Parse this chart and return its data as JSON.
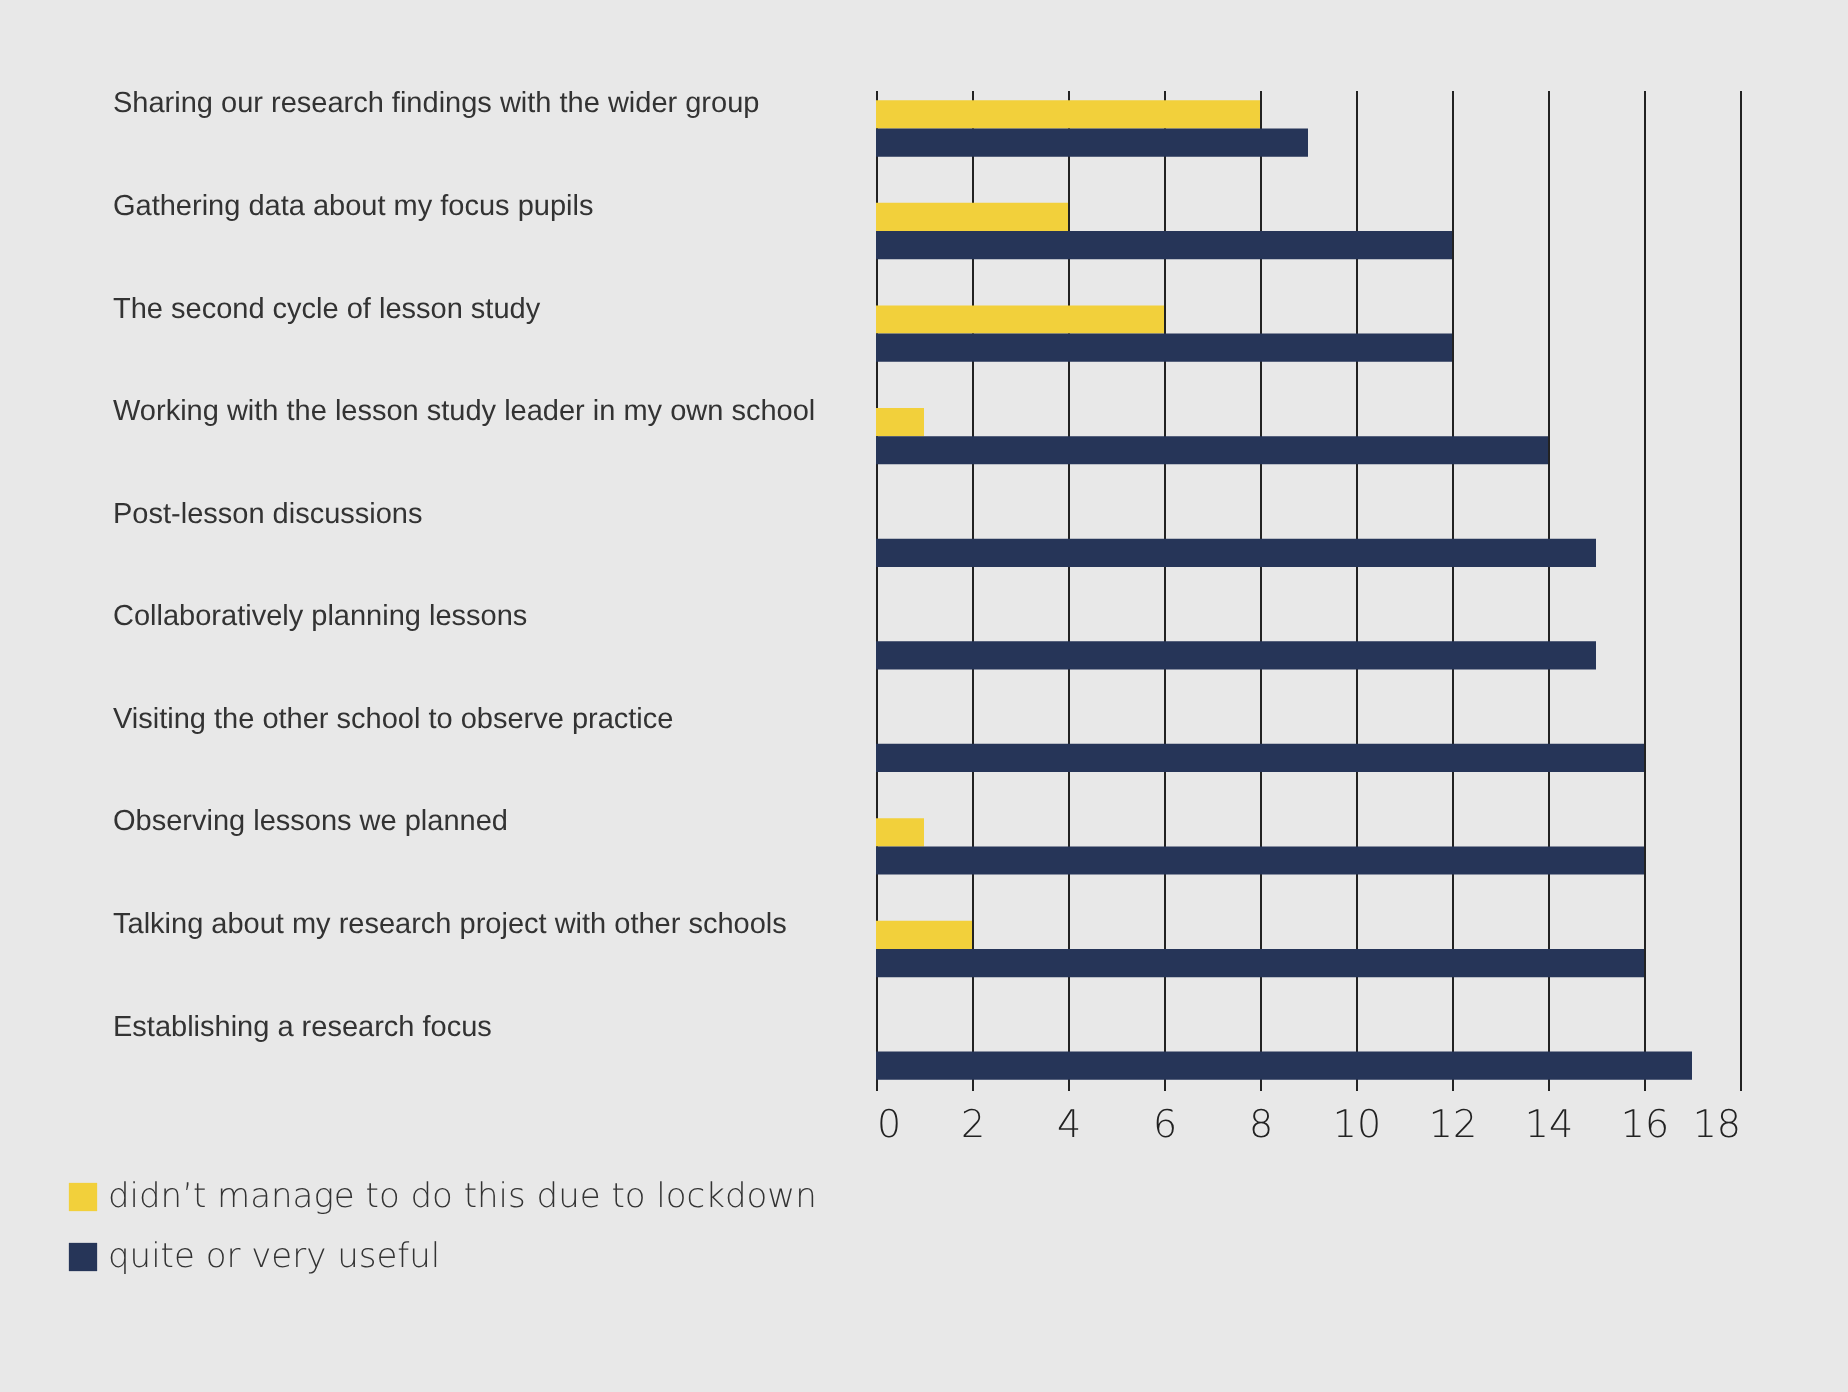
{
  "chart_data": {
    "type": "bar",
    "orientation": "horizontal",
    "categories": [
      "Sharing our research findings with the wider group",
      "Gathering data about my focus pupils",
      "The second cycle of lesson study",
      "Working with the lesson study leader in my own school",
      "Post-lesson discussions",
      "Collaboratively planning lessons",
      "Visiting the other school to observe practice",
      "Observing lessons we planned",
      "Talking about my research project with other schools",
      "Establishing a research focus"
    ],
    "series": [
      {
        "name": "didn’t manage to do this due to lockdown",
        "color": "#f2d03b",
        "values": [
          8,
          4,
          6,
          1,
          null,
          null,
          null,
          1,
          2,
          null
        ]
      },
      {
        "name": "quite or very useful",
        "color": "#263558",
        "values": [
          9,
          12,
          12,
          14,
          15,
          15,
          16,
          16,
          16,
          17
        ]
      }
    ],
    "xlim": [
      0,
      18
    ],
    "xticks": [
      0,
      2,
      4,
      6,
      8,
      10,
      12,
      14,
      16,
      18
    ],
    "grid": "x",
    "legend": "bottom left"
  }
}
